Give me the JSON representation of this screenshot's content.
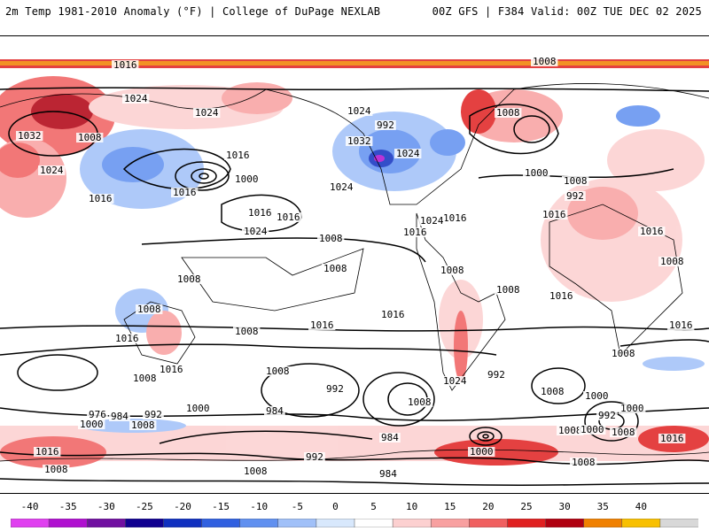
{
  "header": {
    "left": "2m Temp 1981-2010 Anomaly (°F) | College of DuPage NEXLAB",
    "right": "00Z GFS | F384 Valid: 00Z TUE DEC 02 2025"
  },
  "isobar_labels": [
    {
      "text": "1016"
    },
    {
      "text": "1008"
    },
    {
      "text": "1024"
    },
    {
      "text": "1008"
    },
    {
      "text": "1024"
    },
    {
      "text": "1008"
    },
    {
      "text": "1016"
    },
    {
      "text": "1032"
    },
    {
      "text": "1024"
    },
    {
      "text": "992"
    },
    {
      "text": "1000"
    },
    {
      "text": "1024"
    },
    {
      "text": "1016"
    },
    {
      "text": "1016"
    },
    {
      "text": "1024"
    },
    {
      "text": "1016"
    },
    {
      "text": "1016"
    },
    {
      "text": "1024"
    },
    {
      "text": "1016"
    },
    {
      "text": "1032"
    },
    {
      "text": "1024"
    },
    {
      "text": "1016"
    },
    {
      "text": "1024"
    },
    {
      "text": "1016"
    },
    {
      "text": "1008"
    },
    {
      "text": "1000"
    },
    {
      "text": "992"
    },
    {
      "text": "1008"
    },
    {
      "text": "1016"
    },
    {
      "text": "1008"
    },
    {
      "text": "1008"
    },
    {
      "text": "1008"
    },
    {
      "text": "1008"
    },
    {
      "text": "1016"
    },
    {
      "text": "1008"
    },
    {
      "text": "1016"
    },
    {
      "text": "1016"
    },
    {
      "text": "1016"
    },
    {
      "text": "1008"
    },
    {
      "text": "1016"
    },
    {
      "text": "1008"
    },
    {
      "text": "1024"
    },
    {
      "text": "1008"
    },
    {
      "text": "1016"
    },
    {
      "text": "1008"
    },
    {
      "text": "1008"
    },
    {
      "text": "992"
    },
    {
      "text": "1000"
    },
    {
      "text": "1008"
    },
    {
      "text": "992"
    },
    {
      "text": "1000"
    },
    {
      "text": "1008"
    },
    {
      "text": "992"
    },
    {
      "text": "1000"
    },
    {
      "text": "1008"
    },
    {
      "text": "984"
    },
    {
      "text": "976"
    },
    {
      "text": "984"
    },
    {
      "text": "992"
    },
    {
      "text": "1000"
    },
    {
      "text": "1008"
    },
    {
      "text": "984"
    },
    {
      "text": "984"
    },
    {
      "text": "1000"
    },
    {
      "text": "1016"
    },
    {
      "text": "1016"
    },
    {
      "text": "1000"
    },
    {
      "text": "992"
    },
    {
      "text": "1008"
    },
    {
      "text": "1008"
    },
    {
      "text": "1008"
    },
    {
      "text": "1008"
    }
  ],
  "scale": {
    "ticks": [
      "-40",
      "-35",
      "-30",
      "-25",
      "-20",
      "-15",
      "-10",
      "-5",
      "0",
      "5",
      "10",
      "15",
      "20",
      "25",
      "30",
      "35",
      "40"
    ],
    "colors": [
      "#e040f0",
      "#b010d0",
      "#7010a0",
      "#100090",
      "#1030c0",
      "#3060e0",
      "#6090f0",
      "#a0c0f8",
      "#d8e8fc",
      "#ffffff",
      "#fcd0d0",
      "#f8a0a0",
      "#f06060",
      "#e02020",
      "#b00010",
      "#f08000",
      "#f8c000",
      "#d8d8d8"
    ]
  }
}
